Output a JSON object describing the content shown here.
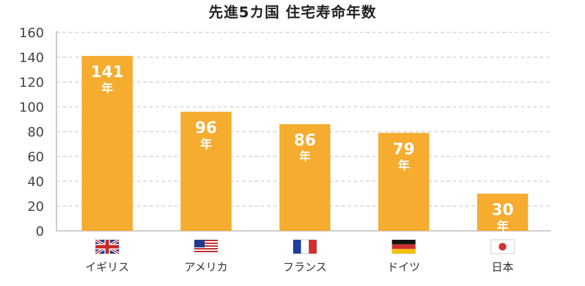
{
  "chart_data": {
    "type": "bar",
    "title": "先進5カ国 住宅寿命年数",
    "categories": [
      "イギリス",
      "アメリカ",
      "フランス",
      "ドイツ",
      "日本"
    ],
    "flag_icons": [
      "uk-flag-icon",
      "us-flag-icon",
      "france-flag-icon",
      "germany-flag-icon",
      "japan-flag-icon"
    ],
    "values": [
      141,
      96,
      86,
      79,
      30
    ],
    "value_unit": "年",
    "ylim": [
      0,
      160
    ],
    "yticks": [
      0,
      20,
      40,
      60,
      80,
      100,
      120,
      140,
      160
    ],
    "grid": true,
    "bar_color": "#F5AC2F",
    "label_color": "#FFFFFF"
  }
}
